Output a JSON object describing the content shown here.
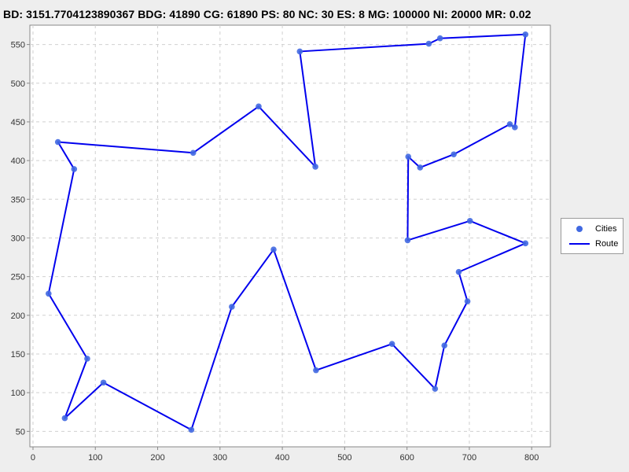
{
  "title": "BD: 3151.7704123890367    BDG: 41890    CG: 61890    PS: 80    NC: 30    ES: 8    MG: 100000    NI: 20000    MR: 0.02",
  "colors": {
    "background": "#eeeeee",
    "plot_background": "#ffffff",
    "grid": "#d0d0d0",
    "cities": "#4169e1",
    "route": "#0000ee"
  },
  "chart_data": {
    "type": "scatter",
    "title": "",
    "xlabel": "",
    "ylabel": "",
    "xlim": [
      -5,
      830
    ],
    "ylim": [
      30,
      575
    ],
    "xticks": [
      0,
      100,
      200,
      300,
      400,
      500,
      600,
      700,
      800
    ],
    "yticks": [
      50,
      100,
      150,
      200,
      250,
      300,
      350,
      400,
      450,
      500,
      550
    ],
    "grid": true,
    "legend_position": "right",
    "series": [
      {
        "name": "Cities",
        "kind": "points",
        "x": [
          790,
          653,
          635,
          428,
          453,
          362,
          257,
          40,
          66,
          25,
          87,
          113,
          51,
          254,
          319,
          386,
          454,
          576,
          645,
          660,
          697,
          683,
          790,
          701,
          601,
          602,
          621,
          675,
          765,
          773
        ],
        "y": [
          563,
          558,
          551,
          541,
          392,
          470,
          410,
          424,
          389,
          228,
          144,
          113,
          67,
          52,
          211,
          285,
          129,
          163,
          105,
          161,
          218,
          256,
          293,
          322,
          297,
          405,
          391,
          408,
          447,
          443
        ]
      },
      {
        "name": "Route",
        "kind": "line",
        "closed": true,
        "x": [
          790,
          653,
          635,
          428,
          453,
          362,
          257,
          40,
          66,
          25,
          87,
          51,
          113,
          254,
          319,
          386,
          454,
          576,
          645,
          660,
          697,
          683,
          790,
          701,
          601,
          602,
          621,
          675,
          765,
          773
        ],
        "y": [
          563,
          558,
          551,
          541,
          392,
          470,
          410,
          424,
          389,
          228,
          144,
          67,
          113,
          52,
          211,
          285,
          129,
          163,
          105,
          161,
          218,
          256,
          293,
          322,
          297,
          405,
          391,
          408,
          447,
          443
        ]
      }
    ]
  },
  "legend": {
    "cities_label": "Cities",
    "route_label": "Route"
  }
}
